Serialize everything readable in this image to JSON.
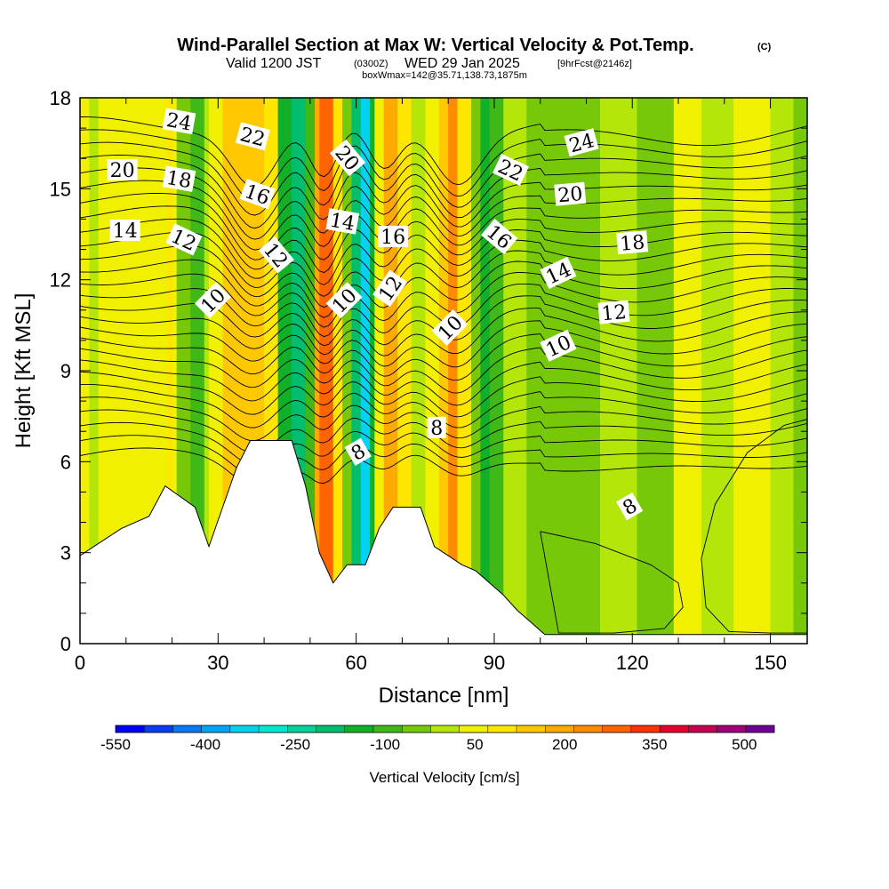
{
  "header": {
    "title": "Wind-Parallel Section at Max W: Vertical Velocity & Pot.Temp.",
    "copyright": "(C)",
    "valid_prefix": "Valid 1200 JST",
    "valid_utc": "(0300Z)",
    "valid_date": "WED 29 Jan 2025",
    "forecast": "[9hrFcst@2146z]",
    "box_info": "boxWmax=142@35.71,138.73,1875m"
  },
  "chart_data": {
    "type": "heatmap",
    "title": "Wind-Parallel Section at Max W: Vertical Velocity & Pot.Temp.",
    "xlabel": "Distance [nm]",
    "ylabel": "Height [Kft MSL]",
    "xlim": [
      0,
      158
    ],
    "ylim": [
      0,
      18
    ],
    "xticks": [
      0,
      30,
      60,
      90,
      120,
      150
    ],
    "yticks": [
      0,
      3,
      6,
      9,
      12,
      15,
      18
    ],
    "colorbar": {
      "label": "Vertical Velocity [cm/s]",
      "ticks": [
        -550,
        -400,
        -250,
        -100,
        50,
        200,
        350,
        500
      ],
      "bins": [
        -550,
        -500,
        -450,
        -400,
        -350,
        -300,
        -250,
        -200,
        -150,
        -100,
        -50,
        0,
        50,
        100,
        150,
        200,
        250,
        300,
        350,
        400,
        450,
        500,
        550
      ],
      "colors": [
        "#0000f2",
        "#0a3cf5",
        "#0a78f5",
        "#00a5f5",
        "#00d2f0",
        "#00e8d0",
        "#00d29a",
        "#00be6e",
        "#12b028",
        "#40b818",
        "#78c80a",
        "#b4e60a",
        "#f0f000",
        "#ffe600",
        "#ffc800",
        "#ffaa00",
        "#ff8c00",
        "#ff6400",
        "#ff3200",
        "#e6002d",
        "#c80050",
        "#a00078",
        "#6e0096"
      ]
    },
    "vertical_velocity_columns": [
      {
        "x": [
          0,
          2
        ],
        "value": 75
      },
      {
        "x": [
          2,
          4
        ],
        "value": 25
      },
      {
        "x": [
          4,
          19
        ],
        "value": 75
      },
      {
        "x": [
          19,
          20
        ],
        "value": 125
      },
      {
        "x": [
          20,
          21
        ],
        "value": 75
      },
      {
        "x": [
          21,
          24
        ],
        "value": -25
      },
      {
        "x": [
          24,
          27
        ],
        "value": -75
      },
      {
        "x": [
          27,
          28
        ],
        "value": 25
      },
      {
        "x": [
          28,
          31
        ],
        "value": 75
      },
      {
        "x": [
          31,
          40
        ],
        "value": 175
      },
      {
        "x": [
          40,
          43
        ],
        "value": 125
      },
      {
        "x": [
          43,
          46
        ],
        "value": -125
      },
      {
        "x": [
          46,
          49
        ],
        "value": -175
      },
      {
        "x": [
          49,
          51
        ],
        "value": -75
      },
      {
        "x": [
          51,
          52
        ],
        "value": 225
      },
      {
        "x": [
          52,
          55
        ],
        "value": 325
      },
      {
        "x": [
          55,
          57
        ],
        "value": 125
      },
      {
        "x": [
          57,
          59
        ],
        "value": -25
      },
      {
        "x": [
          59,
          61
        ],
        "value": -175
      },
      {
        "x": [
          61,
          63
        ],
        "value": -325
      },
      {
        "x": [
          63,
          64
        ],
        "value": -125
      },
      {
        "x": [
          64,
          66
        ],
        "value": 75
      },
      {
        "x": [
          66,
          69
        ],
        "value": 225
      },
      {
        "x": [
          69,
          72
        ],
        "value": 125
      },
      {
        "x": [
          72,
          75
        ],
        "value": 25
      },
      {
        "x": [
          75,
          78
        ],
        "value": 75
      },
      {
        "x": [
          78,
          80
        ],
        "value": 175
      },
      {
        "x": [
          80,
          82
        ],
        "value": 275
      },
      {
        "x": [
          82,
          85
        ],
        "value": 125
      },
      {
        "x": [
          85,
          87
        ],
        "value": -25
      },
      {
        "x": [
          87,
          89
        ],
        "value": -125
      },
      {
        "x": [
          89,
          92
        ],
        "value": -75
      },
      {
        "x": [
          92,
          97
        ],
        "value": 25
      },
      {
        "x": [
          97,
          102
        ],
        "value": -25
      },
      {
        "x": [
          102,
          113
        ],
        "value": -25
      },
      {
        "x": [
          113,
          121
        ],
        "value": 25
      },
      {
        "x": [
          121,
          129
        ],
        "value": -25
      },
      {
        "x": [
          129,
          135
        ],
        "value": 75
      },
      {
        "x": [
          135,
          142
        ],
        "value": 25
      },
      {
        "x": [
          142,
          150
        ],
        "value": 75
      },
      {
        "x": [
          150,
          155
        ],
        "value": 25
      },
      {
        "x": [
          155,
          158
        ],
        "value": -25
      }
    ],
    "terrain": [
      [
        0,
        2.9
      ],
      [
        3,
        3.2
      ],
      [
        6,
        3.5
      ],
      [
        9,
        3.8
      ],
      [
        15,
        4.2
      ],
      [
        18.5,
        5.2
      ],
      [
        25,
        4.5
      ],
      [
        28,
        3.2
      ],
      [
        31,
        4.5
      ],
      [
        34,
        5.8
      ],
      [
        37,
        6.7
      ],
      [
        46,
        6.7
      ],
      [
        49,
        5.2
      ],
      [
        52,
        3.0
      ],
      [
        55,
        2.0
      ],
      [
        58,
        2.6
      ],
      [
        62,
        2.6
      ],
      [
        65,
        3.8
      ],
      [
        68,
        4.5
      ],
      [
        74,
        4.5
      ],
      [
        77,
        3.2
      ],
      [
        80,
        2.9
      ],
      [
        83,
        2.6
      ],
      [
        86,
        2.4
      ],
      [
        89,
        2.0
      ],
      [
        92,
        1.6
      ],
      [
        95,
        1.1
      ],
      [
        98,
        0.7
      ],
      [
        101,
        0.3
      ],
      [
        158,
        0.3
      ]
    ],
    "potential_temperature_labels": [
      {
        "text": "24",
        "x": 21.5,
        "y": 17.2,
        "rotate": 10
      },
      {
        "text": "22",
        "x": 37.5,
        "y": 16.7,
        "rotate": 15
      },
      {
        "text": "20",
        "x": 9.2,
        "y": 15.6,
        "rotate": 0
      },
      {
        "text": "18",
        "x": 21.5,
        "y": 15.3,
        "rotate": 10
      },
      {
        "text": "16",
        "x": 38.5,
        "y": 14.8,
        "rotate": 20
      },
      {
        "text": "14",
        "x": 9.8,
        "y": 13.6,
        "rotate": 0
      },
      {
        "text": "12",
        "x": 22.5,
        "y": 13.3,
        "rotate": 25
      },
      {
        "text": "12",
        "x": 42.5,
        "y": 12.8,
        "rotate": 50
      },
      {
        "text": "10",
        "x": 29.0,
        "y": 11.3,
        "rotate": -45
      },
      {
        "text": "20",
        "x": 58.0,
        "y": 16.0,
        "rotate": 50
      },
      {
        "text": "14",
        "x": 57.0,
        "y": 13.9,
        "rotate": 10
      },
      {
        "text": "10",
        "x": 57.5,
        "y": 11.3,
        "rotate": -45
      },
      {
        "text": "16",
        "x": 68.0,
        "y": 13.4,
        "rotate": 0
      },
      {
        "text": "12",
        "x": 67.5,
        "y": 11.7,
        "rotate": -55
      },
      {
        "text": "8",
        "x": 60.5,
        "y": 6.3,
        "rotate": -30
      },
      {
        "text": "10",
        "x": 80.5,
        "y": 10.4,
        "rotate": -45
      },
      {
        "text": "8",
        "x": 77.5,
        "y": 7.1,
        "rotate": 0
      },
      {
        "text": "22",
        "x": 93.5,
        "y": 15.6,
        "rotate": 25
      },
      {
        "text": "16",
        "x": 91.0,
        "y": 13.4,
        "rotate": 40
      },
      {
        "text": "24",
        "x": 109.0,
        "y": 16.5,
        "rotate": -15
      },
      {
        "text": "20",
        "x": 106.5,
        "y": 14.8,
        "rotate": -5
      },
      {
        "text": "14",
        "x": 104.0,
        "y": 12.2,
        "rotate": -25
      },
      {
        "text": "10",
        "x": 104.0,
        "y": 9.8,
        "rotate": -25
      },
      {
        "text": "18",
        "x": 120.0,
        "y": 13.2,
        "rotate": -5
      },
      {
        "text": "12",
        "x": 116.0,
        "y": 10.9,
        "rotate": -5
      },
      {
        "text": "8",
        "x": 119.5,
        "y": 4.5,
        "rotate": -30
      }
    ]
  }
}
